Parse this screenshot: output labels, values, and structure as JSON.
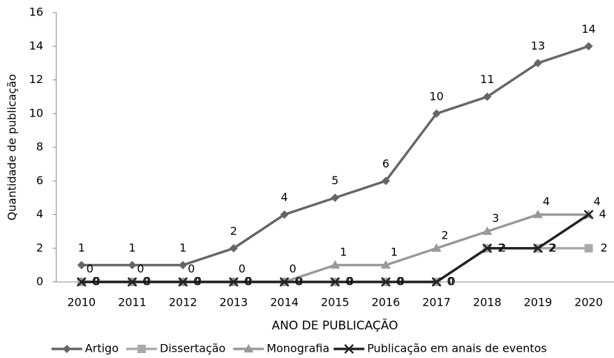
{
  "chart_data": {
    "type": "line",
    "x_label": "ANO DE PUBLICAÇÃO",
    "y_label": "Quantidade de publicação",
    "categories": [
      "2010",
      "2011",
      "2012",
      "2013",
      "2014",
      "2015",
      "2016",
      "2017",
      "2018",
      "2019",
      "2020"
    ],
    "series": [
      {
        "name": "Artigo",
        "color": "#666666",
        "marker": "diamond",
        "values": [
          1,
          1,
          1,
          2,
          4,
          5,
          6,
          10,
          11,
          13,
          14
        ]
      },
      {
        "name": "Dissertação",
        "color": "#aaaaaa",
        "marker": "square",
        "values": [
          0,
          0,
          0,
          0,
          0,
          0,
          0,
          0,
          2,
          2,
          2
        ]
      },
      {
        "name": "Monografia",
        "color": "#999999",
        "marker": "triangle",
        "values": [
          0,
          0,
          0,
          0,
          0,
          1,
          1,
          2,
          3,
          4,
          4
        ]
      },
      {
        "name": "Publicação em anais de eventos",
        "color": "#222222",
        "marker": "x",
        "values": [
          0,
          0,
          0,
          0,
          0,
          0,
          0,
          0,
          2,
          2,
          4
        ]
      }
    ],
    "ylim": [
      0,
      16
    ],
    "yticks": [
      0,
      2,
      4,
      6,
      8,
      10,
      12,
      14,
      16
    ],
    "legend": "bottom"
  }
}
